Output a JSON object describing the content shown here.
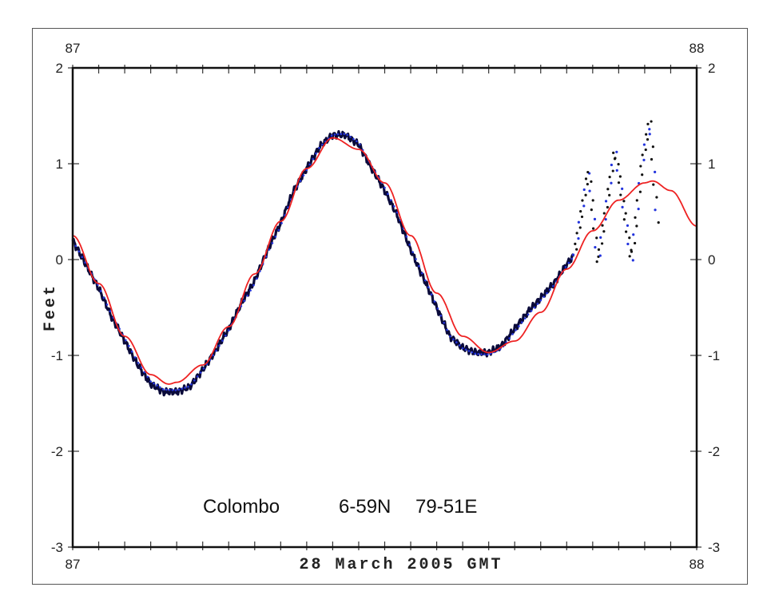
{
  "chart_data": {
    "type": "line",
    "title": "",
    "xlabel": "28 March 2005 GMT",
    "ylabel": "Feet",
    "xlim_hours": [
      0,
      24
    ],
    "ylim": [
      -3,
      2
    ],
    "x_tick_labels": {
      "left": "87",
      "right": "88"
    },
    "y_ticks": [
      2,
      1,
      0,
      -1,
      -2,
      -3
    ],
    "annotation": {
      "station": "Colombo",
      "lat": "6-59N",
      "lon": "79-51E"
    },
    "colors": {
      "predicted": "#ee2222",
      "observed": "#0a0a3a",
      "observed_dots": "#2233dd",
      "tsunami_dots": "#111111"
    },
    "series": [
      {
        "name": "predicted",
        "x": [
          0,
          1,
          2,
          3,
          3.7,
          4,
          5,
          6,
          7,
          8,
          9,
          10,
          11,
          12,
          13,
          14,
          15,
          16,
          17,
          18,
          19,
          20,
          21,
          22,
          22.3,
          23,
          24
        ],
        "y": [
          0.25,
          -0.25,
          -0.8,
          -1.2,
          -1.3,
          -1.28,
          -1.1,
          -0.7,
          -0.15,
          0.4,
          0.95,
          1.27,
          1.15,
          0.8,
          0.25,
          -0.35,
          -0.8,
          -0.97,
          -0.85,
          -0.55,
          -0.1,
          0.3,
          0.62,
          0.8,
          0.82,
          0.72,
          0.35
        ]
      },
      {
        "name": "observed",
        "x": [
          0,
          0.5,
          1,
          1.5,
          2,
          2.5,
          3,
          3.5,
          4,
          4.5,
          5,
          5.5,
          6,
          6.5,
          7,
          7.5,
          8,
          8.5,
          9,
          9.5,
          10,
          10.5,
          11,
          11.5,
          12,
          12.5,
          13,
          13.5,
          14,
          14.5,
          15,
          15.5,
          16,
          16.5,
          17,
          17.5,
          18,
          18.5,
          19,
          19.3
        ],
        "y": [
          0.2,
          -0.05,
          -0.3,
          -0.6,
          -0.85,
          -1.1,
          -1.3,
          -1.38,
          -1.38,
          -1.33,
          -1.15,
          -0.95,
          -0.72,
          -0.45,
          -0.22,
          0.1,
          0.38,
          0.72,
          0.95,
          1.18,
          1.3,
          1.3,
          1.2,
          0.95,
          0.72,
          0.45,
          0.1,
          -0.2,
          -0.5,
          -0.8,
          -0.92,
          -0.97,
          -0.97,
          -0.9,
          -0.72,
          -0.55,
          -0.4,
          -0.25,
          -0.05,
          0.05
        ]
      },
      {
        "name": "observed_sparse",
        "x": [
          19.3,
          19.85,
          20.2,
          20.86,
          21.5,
          21.9,
          22.2,
          22.5
        ],
        "y": [
          0.05,
          0.94,
          -0.04,
          1.15,
          -0.02,
          1.0,
          1.46,
          0.33
        ]
      }
    ]
  }
}
